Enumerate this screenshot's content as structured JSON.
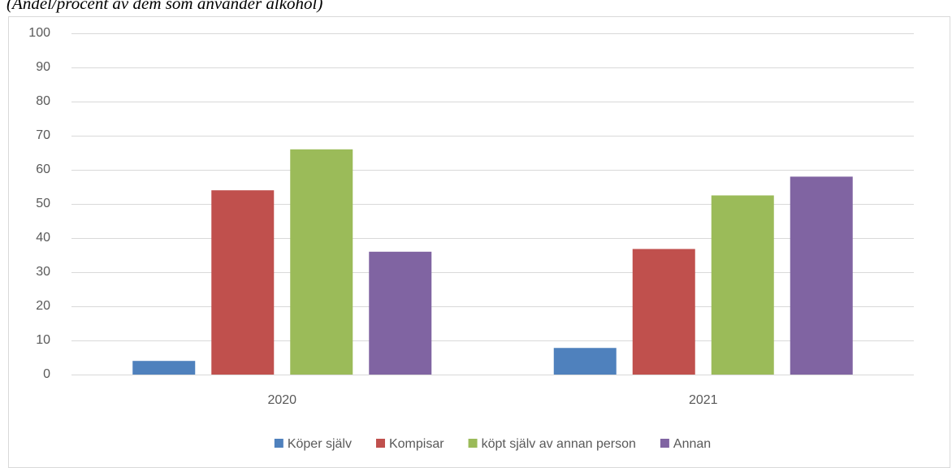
{
  "chart_data": {
    "type": "bar",
    "title": "(Andel/procent av dem som använder alkohol)",
    "categories": [
      "2020",
      "2021"
    ],
    "series": [
      {
        "name": "Köper själv",
        "color": "#4f81bd",
        "values": [
          4,
          7.8
        ]
      },
      {
        "name": "Kompisar",
        "color": "#c0504d",
        "values": [
          54,
          36.8
        ]
      },
      {
        "name": "köpt själv av annan person",
        "color": "#9bbb59",
        "values": [
          66,
          52.5
        ]
      },
      {
        "name": "Annan",
        "color": "#8064a2",
        "values": [
          36,
          58
        ]
      }
    ],
    "ylim": [
      0,
      100
    ],
    "yticks": [
      0,
      10,
      20,
      30,
      40,
      50,
      60,
      70,
      80,
      90,
      100
    ],
    "grid": true,
    "legend": "bottom"
  }
}
